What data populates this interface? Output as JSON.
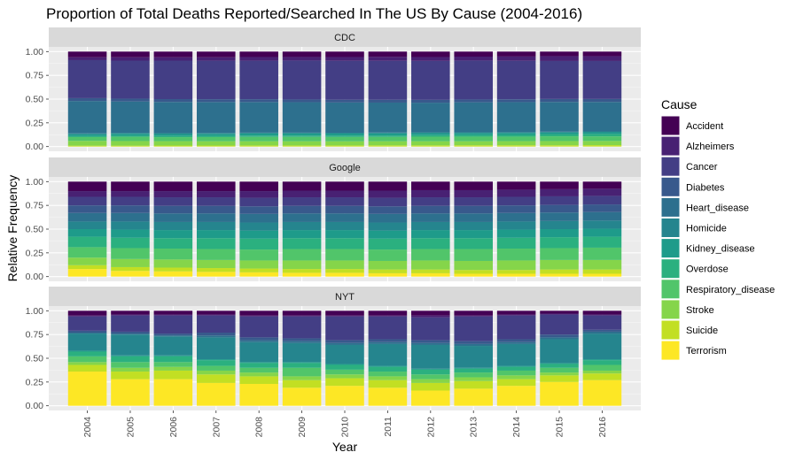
{
  "chart_data": {
    "type": "bar",
    "stacked": true,
    "title": "Proportion of Total Deaths Reported/Searched In The US By Cause (2004-2016)",
    "xlabel": "Year",
    "ylabel": "Relative Frequency",
    "ylim": [
      0,
      1
    ],
    "y_ticks": [
      "0.00",
      "0.25",
      "0.50",
      "0.75",
      "1.00"
    ],
    "categories": [
      "2004",
      "2005",
      "2006",
      "2007",
      "2008",
      "2009",
      "2010",
      "2011",
      "2012",
      "2013",
      "2014",
      "2015",
      "2016"
    ],
    "legend": {
      "title": "Cause",
      "position": "right"
    },
    "causes": [
      {
        "name": "Accident",
        "color": "#440154"
      },
      {
        "name": "Alzheimers",
        "color": "#482173"
      },
      {
        "name": "Cancer",
        "color": "#433E85"
      },
      {
        "name": "Diabetes",
        "color": "#38598C"
      },
      {
        "name": "Heart_disease",
        "color": "#2D708E"
      },
      {
        "name": "Homicide",
        "color": "#25858E"
      },
      {
        "name": "Kidney_disease",
        "color": "#1E9B8A"
      },
      {
        "name": "Overdose",
        "color": "#2BB07F"
      },
      {
        "name": "Respiratory_disease",
        "color": "#51C56A"
      },
      {
        "name": "Stroke",
        "color": "#85D54A"
      },
      {
        "name": "Suicide",
        "color": "#C2DF23"
      },
      {
        "name": "Terrorism",
        "color": "#FDE725"
      }
    ],
    "panels": [
      {
        "name": "CDC",
        "values_by_cause": {
          "Terrorism": [
            0.0,
            0.0,
            0.0,
            0.0,
            0.0,
            0.0,
            0.0,
            0.0,
            0.0,
            0.0,
            0.0,
            0.0,
            0.0
          ],
          "Suicide": [
            0.01,
            0.01,
            0.011,
            0.011,
            0.012,
            0.012,
            0.012,
            0.013,
            0.013,
            0.014,
            0.014,
            0.014,
            0.015
          ],
          "Stroke": [
            0.05,
            0.048,
            0.046,
            0.045,
            0.044,
            0.044,
            0.043,
            0.043,
            0.043,
            0.042,
            0.043,
            0.044,
            0.044
          ],
          "Respiratory_disease": [
            0.04,
            0.045,
            0.042,
            0.044,
            0.046,
            0.046,
            0.046,
            0.046,
            0.048,
            0.049,
            0.048,
            0.05,
            0.048
          ],
          "Overdose": [
            0.01,
            0.011,
            0.012,
            0.013,
            0.014,
            0.014,
            0.014,
            0.015,
            0.016,
            0.017,
            0.018,
            0.02,
            0.024
          ],
          "Kidney_disease": [
            0.02,
            0.021,
            0.021,
            0.021,
            0.022,
            0.022,
            0.022,
            0.022,
            0.021,
            0.021,
            0.021,
            0.02,
            0.02
          ],
          "Homicide": [
            0.01,
            0.01,
            0.01,
            0.01,
            0.009,
            0.009,
            0.009,
            0.009,
            0.009,
            0.008,
            0.008,
            0.009,
            0.009
          ],
          "Heart_disease": [
            0.34,
            0.33,
            0.328,
            0.325,
            0.322,
            0.32,
            0.318,
            0.315,
            0.312,
            0.315,
            0.316,
            0.313,
            0.31
          ],
          "Diabetes": [
            0.03,
            0.03,
            0.03,
            0.03,
            0.03,
            0.029,
            0.029,
            0.03,
            0.03,
            0.03,
            0.03,
            0.031,
            0.031
          ],
          "Cancer": [
            0.4,
            0.4,
            0.405,
            0.405,
            0.405,
            0.41,
            0.41,
            0.41,
            0.41,
            0.41,
            0.405,
            0.4,
            0.4
          ],
          "Alzheimers": [
            0.03,
            0.035,
            0.035,
            0.036,
            0.038,
            0.037,
            0.039,
            0.041,
            0.04,
            0.041,
            0.045,
            0.05,
            0.05
          ],
          "Accident": [
            0.06,
            0.06,
            0.06,
            0.06,
            0.058,
            0.057,
            0.058,
            0.056,
            0.058,
            0.053,
            0.052,
            0.049,
            0.049
          ]
        }
      },
      {
        "name": "Google",
        "values_by_cause": {
          "Terrorism": [
            0.08,
            0.06,
            0.055,
            0.05,
            0.045,
            0.04,
            0.04,
            0.035,
            0.035,
            0.03,
            0.03,
            0.03,
            0.03
          ],
          "Suicide": [
            0.04,
            0.04,
            0.04,
            0.04,
            0.04,
            0.04,
            0.04,
            0.04,
            0.04,
            0.04,
            0.04,
            0.045,
            0.045
          ],
          "Stroke": [
            0.08,
            0.085,
            0.085,
            0.085,
            0.085,
            0.09,
            0.09,
            0.09,
            0.095,
            0.095,
            0.1,
            0.1,
            0.1
          ],
          "Respiratory_disease": [
            0.11,
            0.115,
            0.115,
            0.115,
            0.115,
            0.12,
            0.12,
            0.12,
            0.12,
            0.125,
            0.125,
            0.125,
            0.13
          ],
          "Overdose": [
            0.11,
            0.11,
            0.11,
            0.115,
            0.115,
            0.115,
            0.115,
            0.115,
            0.115,
            0.115,
            0.115,
            0.115,
            0.115
          ],
          "Kidney_disease": [
            0.08,
            0.085,
            0.085,
            0.085,
            0.085,
            0.085,
            0.085,
            0.085,
            0.085,
            0.085,
            0.085,
            0.085,
            0.085
          ],
          "Homicide": [
            0.08,
            0.085,
            0.085,
            0.085,
            0.085,
            0.085,
            0.085,
            0.085,
            0.085,
            0.085,
            0.085,
            0.085,
            0.085
          ],
          "Heart_disease": [
            0.09,
            0.09,
            0.09,
            0.09,
            0.09,
            0.09,
            0.09,
            0.09,
            0.09,
            0.09,
            0.09,
            0.09,
            0.09
          ],
          "Diabetes": [
            0.08,
            0.08,
            0.08,
            0.08,
            0.08,
            0.08,
            0.08,
            0.08,
            0.08,
            0.08,
            0.08,
            0.08,
            0.08
          ],
          "Cancer": [
            0.09,
            0.09,
            0.09,
            0.09,
            0.09,
            0.09,
            0.09,
            0.09,
            0.09,
            0.09,
            0.09,
            0.09,
            0.09
          ],
          "Alzheimers": [
            0.06,
            0.06,
            0.065,
            0.065,
            0.07,
            0.07,
            0.07,
            0.075,
            0.075,
            0.075,
            0.075,
            0.075,
            0.075
          ],
          "Accident": [
            0.1,
            0.1,
            0.1,
            0.1,
            0.1,
            0.095,
            0.095,
            0.095,
            0.09,
            0.09,
            0.085,
            0.08,
            0.075
          ]
        }
      },
      {
        "name": "NYT",
        "values_by_cause": {
          "Terrorism": [
            0.36,
            0.28,
            0.28,
            0.24,
            0.23,
            0.19,
            0.21,
            0.19,
            0.16,
            0.18,
            0.21,
            0.25,
            0.27
          ],
          "Suicide": [
            0.07,
            0.08,
            0.09,
            0.09,
            0.08,
            0.08,
            0.08,
            0.08,
            0.08,
            0.08,
            0.07,
            0.07,
            0.07
          ],
          "Stroke": [
            0.03,
            0.04,
            0.04,
            0.04,
            0.04,
            0.04,
            0.04,
            0.04,
            0.04,
            0.04,
            0.04,
            0.03,
            0.03
          ],
          "Respiratory_disease": [
            0.06,
            0.06,
            0.05,
            0.05,
            0.05,
            0.09,
            0.05,
            0.05,
            0.05,
            0.05,
            0.05,
            0.05,
            0.06
          ],
          "Overdose": [
            0.05,
            0.06,
            0.06,
            0.06,
            0.05,
            0.05,
            0.05,
            0.05,
            0.05,
            0.04,
            0.04,
            0.04,
            0.05
          ],
          "Kidney_disease": [
            0.01,
            0.01,
            0.01,
            0.01,
            0.01,
            0.01,
            0.01,
            0.01,
            0.01,
            0.01,
            0.01,
            0.01,
            0.01
          ],
          "Homicide": [
            0.18,
            0.22,
            0.2,
            0.23,
            0.21,
            0.2,
            0.2,
            0.23,
            0.25,
            0.23,
            0.23,
            0.25,
            0.27
          ],
          "Heart_disease": [
            0.01,
            0.01,
            0.01,
            0.02,
            0.02,
            0.02,
            0.02,
            0.02,
            0.02,
            0.02,
            0.02,
            0.02,
            0.02
          ],
          "Diabetes": [
            0.02,
            0.02,
            0.02,
            0.03,
            0.03,
            0.03,
            0.03,
            0.03,
            0.03,
            0.03,
            0.03,
            0.03,
            0.02
          ],
          "Cancer": [
            0.15,
            0.17,
            0.19,
            0.18,
            0.22,
            0.23,
            0.25,
            0.24,
            0.24,
            0.26,
            0.25,
            0.21,
            0.15
          ],
          "Alzheimers": [
            0.01,
            0.01,
            0.01,
            0.01,
            0.01,
            0.01,
            0.01,
            0.01,
            0.02,
            0.01,
            0.01,
            0.01,
            0.01
          ],
          "Accident": [
            0.05,
            0.04,
            0.04,
            0.04,
            0.05,
            0.05,
            0.05,
            0.05,
            0.05,
            0.05,
            0.04,
            0.03,
            0.04
          ]
        }
      }
    ]
  }
}
